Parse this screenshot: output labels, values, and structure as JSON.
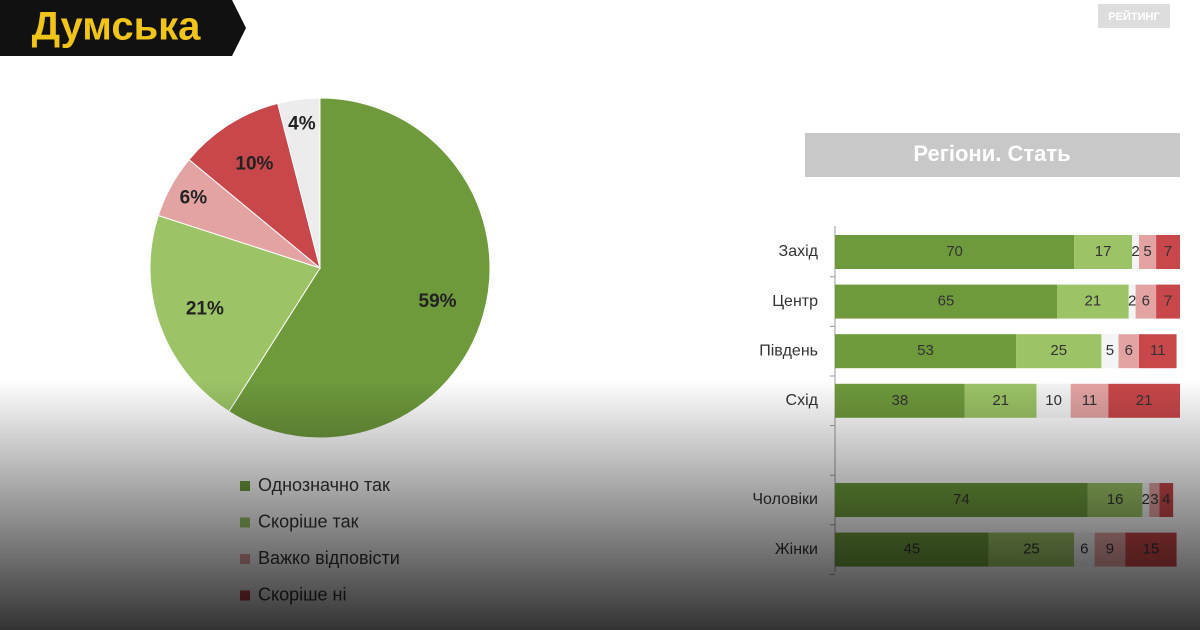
{
  "logo": "Думська",
  "source": "РЕЙТИНГ",
  "chart_data": [
    {
      "type": "pie",
      "categories": [
        "Однозначно так",
        "Скоріше так",
        "Важко відповісти",
        "Скоріше ні",
        null
      ],
      "values": [
        59,
        21,
        6,
        10,
        4
      ],
      "value_labels": [
        "59%",
        "21%",
        "6%",
        "10%",
        "4%"
      ],
      "colors": [
        "#6e9a3c",
        "#9cc466",
        "#e3a3a3",
        "#c8474a",
        "#ececec"
      ],
      "order": [
        0,
        1,
        2,
        3,
        4
      ]
    },
    {
      "type": "stacked_bar_horizontal",
      "title": "Регіони. Стать",
      "categories": [
        "Захід",
        "Центр",
        "Південь",
        "Схід",
        null,
        "Чоловіки",
        "Жінки"
      ],
      "xlim": [
        0,
        101
      ],
      "series": [
        {
          "color": "#6e9a3c",
          "values": [
            70,
            65,
            53,
            38,
            null,
            74,
            45
          ]
        },
        {
          "color": "#9cc466",
          "values": [
            17,
            21,
            25,
            21,
            null,
            16,
            25
          ]
        },
        {
          "color": "#f4f4f4",
          "values": [
            2,
            2,
            5,
            10,
            null,
            2,
            6
          ]
        },
        {
          "color": "#e3a3a3",
          "values": [
            5,
            6,
            6,
            11,
            null,
            3,
            9
          ]
        },
        {
          "color": "#c8474a",
          "values": [
            7,
            7,
            11,
            21,
            null,
            4,
            15
          ]
        }
      ]
    }
  ]
}
